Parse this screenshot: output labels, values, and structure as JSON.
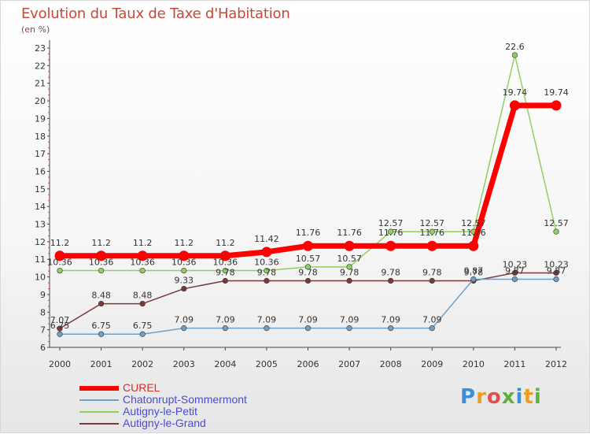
{
  "header": {
    "title": "Evolution du Taux de Taxe d'Habitation",
    "subtitle": "(en %)"
  },
  "logo": {
    "text": "Proxiti",
    "letter_colors": [
      "#3a8fd6",
      "#e8a020",
      "#e05050",
      "#60b040",
      "#3a8fd6",
      "#e8a020",
      "#60b040"
    ]
  },
  "chart_data": {
    "type": "line",
    "title": "Evolution du Taux de Taxe d'Habitation",
    "subtitle": "(en %)",
    "x": [
      "2000",
      "2001",
      "2002",
      "2003",
      "2004",
      "2005",
      "2006",
      "2007",
      "2008",
      "2009",
      "2010",
      "2011",
      "2012"
    ],
    "ylim": [
      6,
      23
    ],
    "yticks": [
      "6",
      "7",
      "8",
      "9",
      "10",
      "11",
      "12",
      "13",
      "14",
      "15",
      "16",
      "17",
      "18",
      "19",
      "20",
      "21",
      "22",
      "23"
    ],
    "grid": false,
    "legend_placement": "bottom-left",
    "series": [
      {
        "name": "CUREL",
        "color": "#ff0000",
        "values": [
          11.2,
          11.2,
          11.2,
          11.2,
          11.2,
          11.42,
          11.76,
          11.76,
          11.76,
          11.76,
          11.76,
          19.74,
          19.74
        ],
        "labels": [
          "11.2",
          "11.2",
          "11.2",
          "11.2",
          "11.2",
          "11.42",
          "11.76",
          "11.76",
          "11.76",
          "11.76",
          "11.76",
          "19.74",
          "19.74"
        ]
      },
      {
        "name": "Chatonrupt-Sommermont",
        "color": "#6fa0c8",
        "values": [
          6.75,
          6.75,
          6.75,
          7.09,
          7.09,
          7.09,
          7.09,
          7.09,
          7.09,
          7.09,
          9.87,
          9.87,
          9.87
        ],
        "labels": [
          "6.75",
          "6.75",
          "6.75",
          "7.09",
          "7.09",
          "7.09",
          "7.09",
          "7.09",
          "7.09",
          "7.09",
          "9.87",
          "9.87",
          "9.87"
        ]
      },
      {
        "name": "Autigny-le-Petit",
        "color": "#90d060",
        "values": [
          10.36,
          10.36,
          10.36,
          10.36,
          10.36,
          10.36,
          10.57,
          10.57,
          12.57,
          12.57,
          12.57,
          22.6,
          12.57
        ],
        "labels": [
          "10.36",
          "10.36",
          "10.36",
          "10.36",
          "10.36",
          "10.36",
          "10.57",
          "10.57",
          "12.57",
          "12.57",
          "12.57",
          "22.6",
          "12.57"
        ]
      },
      {
        "name": "Autigny-le-Grand",
        "color": "#7a3a3a",
        "values": [
          7.07,
          8.48,
          8.48,
          9.33,
          9.78,
          9.78,
          9.78,
          9.78,
          9.78,
          9.78,
          9.78,
          10.23,
          10.23
        ],
        "labels": [
          "7.07",
          "8.48",
          "8.48",
          "9.33",
          "9.78",
          "9.78",
          "9.78",
          "9.78",
          "9.78",
          "9.78",
          "9.78",
          "10.23",
          "10.23"
        ]
      }
    ]
  }
}
